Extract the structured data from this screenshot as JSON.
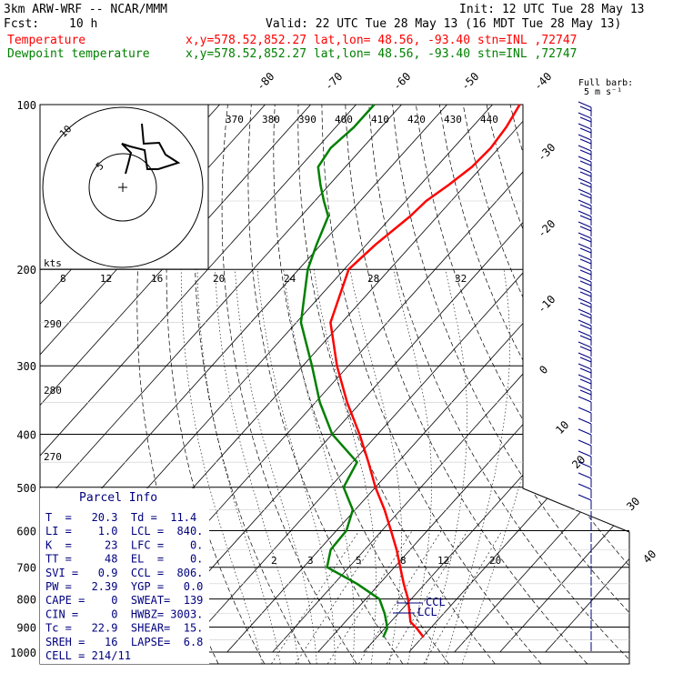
{
  "header": {
    "model": "3km ARW-WRF -- NCAR/MMM",
    "init": "Init: 12 UTC Tue 28 May 13",
    "fcst_label": "Fcst:",
    "fcst_value": "10 h",
    "valid": "Valid: 22 UTC Tue 28 May 13 (16 MDT Tue 28 May 13)"
  },
  "legend": {
    "temperature": {
      "label": "Temperature",
      "info": "x,y=578.52,852.27   lat,lon= 48.56, -93.40   stn=INL ,72747",
      "color": "#ff0000"
    },
    "dewpoint": {
      "label": "Dewpoint temperature",
      "info": "x,y=578.52,852.27   lat,lon= 48.56, -93.40   stn=INL ,72747",
      "color": "#008000"
    }
  },
  "barb_note": {
    "line1": "Full barb:",
    "line2": "5 m s⁻¹"
  },
  "parcel_info": {
    "title": "Parcel Info",
    "rows": [
      "T  =   20.3  Td =  11.4",
      "LI =    1.0  LCL =  840.",
      "K  =     23  LFC =    0.",
      "TT =     48  EL  =    0.",
      "SVI =   0.9  CCL =  806.",
      "PW =   2.39  YGP =   0.0",
      "CAPE =    0  SWEAT=  139",
      "CIN =     0  HWBZ= 3003.",
      "Tc =   22.9  SHEAR=  15.",
      "SREH =   16  LAPSE=  6.8",
      "CELL = 214/11"
    ]
  },
  "hodograph": {
    "kts_label": "kts",
    "ring_label_5": "5",
    "ring_label_10": "10",
    "speed_ticks": [
      "8",
      "12",
      "16",
      "20",
      "24",
      "28",
      "32"
    ]
  },
  "level_markers": {
    "ccl": "CCL",
    "lcl": "LCL"
  },
  "chart_data": {
    "type": "line",
    "title": "",
    "xlabel": "",
    "ylabel": "",
    "y_scale": "log-pressure",
    "ylim": [
      1000,
      100
    ],
    "pressure_labels": [
      "100",
      "200",
      "300",
      "400",
      "500",
      "600",
      "700",
      "800",
      "900",
      "1000"
    ],
    "isotherm_labels": [
      "-80",
      "-70",
      "-60",
      "-50",
      "-40",
      "-30",
      "-20",
      "-10",
      "0",
      "10",
      "20",
      "30",
      "40"
    ],
    "theta_labels": [
      "370",
      "380",
      "390",
      "400",
      "410",
      "420",
      "430",
      "440"
    ],
    "theta_low_labels": [
      "290",
      "280",
      "270"
    ],
    "mixing_ratio_labels": [
      "2",
      "3",
      "5",
      "8",
      "12",
      "20"
    ],
    "series": [
      {
        "name": "Temperature",
        "pressure": [
          940,
          905,
          880,
          850,
          800,
          750,
          700,
          650,
          600,
          550,
          500,
          450,
          400,
          350,
          300,
          250,
          200,
          180,
          160,
          150,
          140,
          130,
          120,
          110,
          100
        ],
        "values": [
          20.3,
          17,
          14.3,
          12.5,
          9.3,
          5.3,
          1.3,
          -3.0,
          -8.0,
          -13.5,
          -20.0,
          -26.5,
          -34.0,
          -43.0,
          -52.5,
          -62.5,
          -69.0,
          -68.0,
          -66.0,
          -65.5,
          -63.7,
          -62.2,
          -61.8,
          -62.5,
          -64.0
        ]
      },
      {
        "name": "Dewpoint temperature",
        "pressure": [
          940,
          905,
          880,
          850,
          800,
          750,
          700,
          650,
          600,
          550,
          500,
          450,
          400,
          350,
          300,
          250,
          200,
          180,
          160,
          150,
          140,
          130,
          120,
          110,
          100
        ],
        "values": [
          11.4,
          10.5,
          9.0,
          7.0,
          3.0,
          -5.0,
          -14.8,
          -17.5,
          -17.8,
          -20.5,
          -27.0,
          -29.0,
          -40.0,
          -49.0,
          -58.0,
          -69.0,
          -78.0,
          -81.0,
          -84.0,
          -88.0,
          -92.0,
          -96.0,
          -97.0,
          -96.0,
          -96.0
        ]
      }
    ]
  }
}
